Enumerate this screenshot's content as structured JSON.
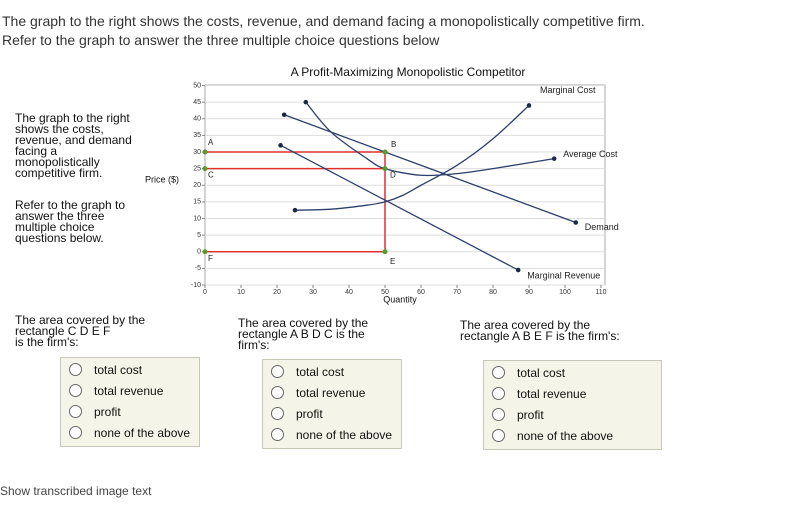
{
  "intro": [
    "The graph to the right shows the costs, revenue, and demand facing a monopolistically competitive firm.",
    "Refer to the graph to answer the three multiple choice questions below"
  ],
  "side_text": [
    "The graph to the right\nshows the costs,\nrevenue, and demand\nfacing a\nmonopolistically\ncompetitive firm.",
    "Refer to the graph to\nanswer the three\nmultiple choice\nquestions below."
  ],
  "chart_data": {
    "type": "line",
    "title": "A Profit-Maximizing Monopolistic Competitor",
    "xlabel": "Quantity",
    "ylabel": "Price ($)",
    "xlim": [
      0,
      110
    ],
    "ylim": [
      -10,
      50
    ],
    "xticks": [
      0,
      10,
      20,
      30,
      40,
      50,
      60,
      70,
      80,
      90,
      100,
      110
    ],
    "yticks": [
      -10,
      -5,
      0,
      5,
      10,
      15,
      20,
      25,
      30,
      35,
      40,
      45,
      50
    ],
    "grid": true,
    "series": [
      {
        "name": "Marginal Cost",
        "color": "#2b3f6b",
        "x": [
          25,
          35,
          45,
          50,
          55,
          60,
          70,
          80,
          90
        ],
        "values": [
          12.5,
          12.8,
          14,
          15,
          17,
          20,
          26,
          34,
          44
        ]
      },
      {
        "name": "Average Cost",
        "color": "#2b3f6b",
        "x": [
          28,
          35,
          45,
          50,
          60,
          70,
          80,
          97
        ],
        "values": [
          45,
          36,
          28,
          25,
          23,
          23.5,
          25,
          28
        ]
      },
      {
        "name": "Demand",
        "color": "#2b3f6b",
        "x": [
          22,
          103
        ],
        "values": [
          41.2,
          8.8
        ]
      },
      {
        "name": "Marginal Revenue",
        "color": "#2b3f6b",
        "x": [
          21,
          87
        ],
        "values": [
          32,
          -5.5
        ]
      }
    ],
    "guide_color": "#e03030",
    "guides": [
      {
        "x": [
          0,
          50
        ],
        "y": [
          30,
          30
        ]
      },
      {
        "x": [
          0,
          50
        ],
        "y": [
          25,
          25
        ]
      },
      {
        "x": [
          0,
          50
        ],
        "y": [
          0,
          0
        ]
      },
      {
        "x": [
          50,
          50
        ],
        "y": [
          0,
          30
        ]
      }
    ],
    "point_color": "#5a9a2a",
    "points": [
      {
        "label": "A",
        "x": 0,
        "y": 30
      },
      {
        "label": "B",
        "x": 50,
        "y": 30
      },
      {
        "label": "C",
        "x": 0,
        "y": 25
      },
      {
        "label": "D",
        "x": 50,
        "y": 25
      },
      {
        "label": "E",
        "x": 50,
        "y": 0
      },
      {
        "label": "F",
        "x": 0,
        "y": 0
      }
    ]
  },
  "questions": [
    {
      "prompt": "The area covered by the\nrectangle C D E F\nis the firm's:",
      "options": [
        "total cost",
        "total revenue",
        "profit",
        "none of the above"
      ]
    },
    {
      "prompt": "The area covered by the\nrectangle A B D C is the\nfirm's:",
      "options": [
        "total cost",
        "total revenue",
        "profit",
        "none of the above"
      ]
    },
    {
      "prompt": "The area covered by the\nrectangle A B E F is the firm's:",
      "options": [
        "total cost",
        "total revenue",
        "profit",
        "none of the above"
      ]
    }
  ],
  "footer": "Show transcribed image text"
}
